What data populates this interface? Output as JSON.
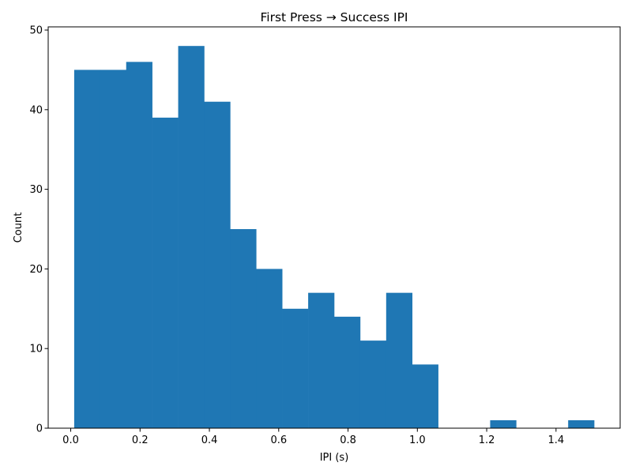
{
  "chart_data": {
    "type": "bar",
    "title": "First Press → Success IPI",
    "xlabel": "IPI (s)",
    "ylabel": "Count",
    "xlim": [
      -0.065,
      1.585
    ],
    "ylim": [
      0,
      50.4
    ],
    "xticks": [
      0.0,
      0.2,
      0.4,
      0.6,
      0.8,
      1.0,
      1.2,
      1.4
    ],
    "xtick_labels": [
      "0.0",
      "0.2",
      "0.4",
      "0.6",
      "0.8",
      "1.0",
      "1.2",
      "1.4"
    ],
    "yticks": [
      0,
      10,
      20,
      30,
      40,
      50
    ],
    "ytick_labels": [
      "0",
      "10",
      "20",
      "30",
      "40",
      "50"
    ],
    "grid": false,
    "bar_color": "#1f77b4",
    "bin_edges": [
      0.01,
      0.085,
      0.16,
      0.235,
      0.31,
      0.385,
      0.46,
      0.535,
      0.61,
      0.685,
      0.76,
      0.835,
      0.91,
      0.985,
      1.06,
      1.135,
      1.21,
      1.285,
      1.36,
      1.435,
      1.51
    ],
    "values": [
      45,
      45,
      46,
      39,
      48,
      41,
      25,
      20,
      15,
      17,
      14,
      11,
      17,
      8,
      0,
      0,
      1,
      0,
      0,
      1
    ]
  }
}
